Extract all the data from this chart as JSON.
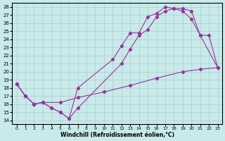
{
  "xlabel": "Windchill (Refroidissement éolien,°C)",
  "ylabel_ticks": [
    14,
    15,
    16,
    17,
    18,
    19,
    20,
    21,
    22,
    23,
    24,
    25,
    26,
    27,
    28
  ],
  "xlabel_ticks": [
    0,
    1,
    2,
    3,
    4,
    5,
    6,
    7,
    8,
    9,
    10,
    11,
    12,
    13,
    14,
    15,
    16,
    17,
    18,
    19,
    20,
    21,
    22,
    23
  ],
  "xlim": [
    -0.5,
    23.5
  ],
  "ylim": [
    13.5,
    28.5
  ],
  "bg_color": "#c8eaea",
  "line_color": "#993399",
  "grid_color": "#b0cccc",
  "line1_x": [
    0,
    1,
    2,
    3,
    4,
    5,
    6,
    7,
    11,
    12,
    13,
    14,
    15,
    16,
    17,
    18,
    19,
    20,
    21,
    23
  ],
  "line1_y": [
    18.5,
    17.0,
    16.0,
    16.2,
    15.5,
    15.0,
    14.2,
    18.0,
    21.5,
    23.2,
    24.8,
    24.8,
    26.8,
    27.2,
    28.0,
    27.8,
    27.5,
    26.5,
    24.5,
    20.5
  ],
  "line2_x": [
    0,
    1,
    2,
    3,
    4,
    5,
    6,
    7,
    12,
    13,
    14,
    15,
    16,
    17,
    18,
    19,
    20,
    21,
    22,
    23
  ],
  "line2_y": [
    18.5,
    17.0,
    16.0,
    16.2,
    15.5,
    15.0,
    14.2,
    15.5,
    21.0,
    22.8,
    24.5,
    25.2,
    26.8,
    27.5,
    27.8,
    27.8,
    27.5,
    24.5,
    24.5,
    20.5
  ],
  "line3_x": [
    0,
    1,
    2,
    3,
    5,
    7,
    10,
    13,
    16,
    19,
    21,
    23
  ],
  "line3_y": [
    18.5,
    17.0,
    16.0,
    16.2,
    16.2,
    16.8,
    17.5,
    18.3,
    19.2,
    20.0,
    20.3,
    20.5
  ]
}
